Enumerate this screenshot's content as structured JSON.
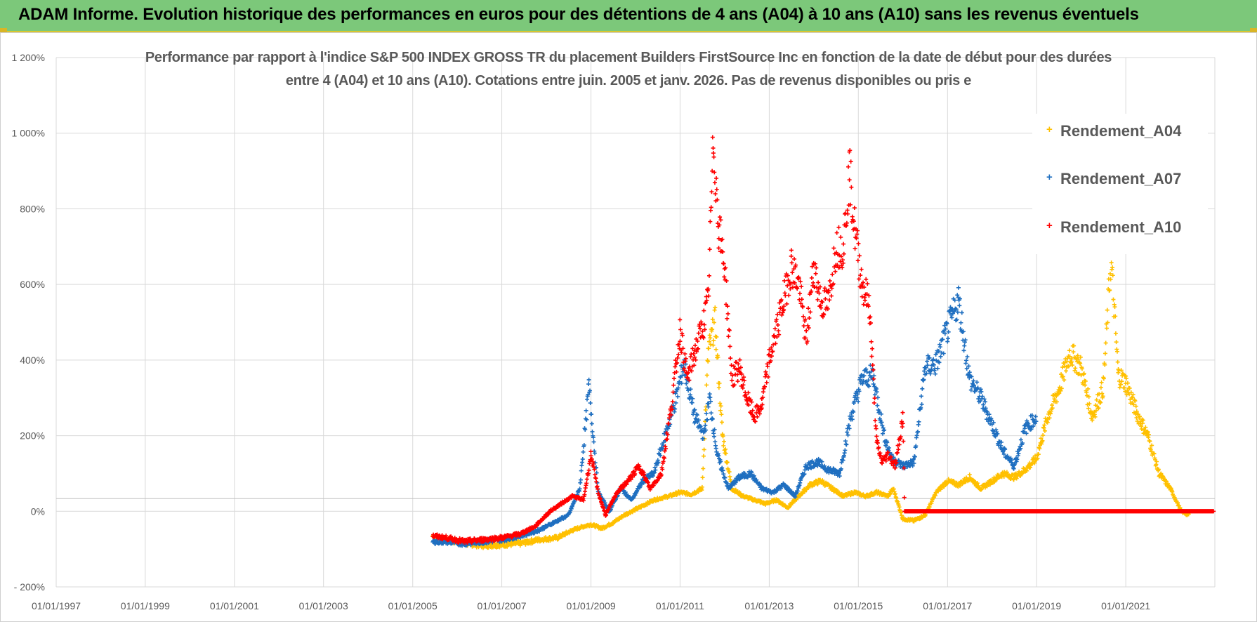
{
  "banner": {
    "title": "ADAM Informe. Evolution historique des performances en euros pour des détentions de 4 ans (A04) à 10 ans (A10) sans les revenus éventuels"
  },
  "colors": {
    "banner_bg": "#7cc87a",
    "A04": "#ffc000",
    "A07": "#1f6fc0",
    "A10": "#ff0000"
  },
  "chart_data": {
    "type": "scatter",
    "title_lines": [
      "Performance par rapport à l'indice S&P 500 INDEX GROSS TR  du placement Builders FirstSource Inc en fonction de la date de début pour des durées",
      "entre 4 (A04) et 10 ans (A10). Cotations entre juin. 2005 et janv. 2026. Pas de revenus disponibles ou pris e"
    ],
    "xlim": [
      "1997-01-01",
      "2023-01-01"
    ],
    "ylim": [
      -200,
      1200
    ],
    "y_ticks": [
      -200,
      0,
      200,
      400,
      600,
      800,
      1000,
      1200
    ],
    "y_tick_labels": [
      "- 200%",
      "0%",
      "200%",
      "400%",
      "600%",
      "800%",
      "1 000%",
      "1 200%"
    ],
    "x_ticks": [
      "1997-01-01",
      "1999-01-01",
      "2001-01-01",
      "2003-01-01",
      "2005-01-01",
      "2007-01-01",
      "2009-01-01",
      "2011-01-01",
      "2013-01-01",
      "2015-01-01",
      "2017-01-01",
      "2019-01-01",
      "2021-01-01"
    ],
    "x_tick_labels": [
      "01/01/1997",
      "01/01/1999",
      "01/01/2001",
      "01/01/2003",
      "01/01/2005",
      "01/01/2007",
      "01/01/2009",
      "01/01/2011",
      "01/01/2013",
      "01/01/2015",
      "01/01/2017",
      "01/01/2019",
      "01/01/2021"
    ],
    "grid": true,
    "marker": "+",
    "legend_position": "top-right",
    "series": [
      {
        "name": "Rendement_A04",
        "color": "#ffc000",
        "x": [
          "2005-06-15",
          "2005-10-01",
          "2006-03-01",
          "2006-08-01",
          "2007-01-01",
          "2007-06-01",
          "2007-11-01",
          "2008-04-01",
          "2008-08-01",
          "2008-11-01",
          "2009-01-01",
          "2009-04-01",
          "2009-07-01",
          "2009-10-01",
          "2010-02-01",
          "2010-06-01",
          "2010-10-01",
          "2011-01-01",
          "2011-04-01",
          "2011-07-01",
          "2011-08-20",
          "2011-10-15",
          "2011-12-15",
          "2012-03-01",
          "2012-06-01",
          "2012-09-01",
          "2012-12-01",
          "2013-03-01",
          "2013-06-01",
          "2013-09-01",
          "2013-12-01",
          "2014-03-01",
          "2014-06-01",
          "2014-09-01",
          "2014-12-01",
          "2015-03-01",
          "2015-06-01",
          "2015-09-01",
          "2015-10-15",
          "2016-01-01",
          "2016-04-01",
          "2016-07-01",
          "2016-10-01",
          "2017-01-01",
          "2017-04-01",
          "2017-07-01",
          "2017-10-01",
          "2018-01-01",
          "2018-04-01",
          "2018-07-01",
          "2018-10-01",
          "2019-01-01",
          "2019-04-01",
          "2019-07-01",
          "2019-10-01",
          "2020-01-01",
          "2020-04-01",
          "2020-07-01",
          "2020-09-01",
          "2020-11-01",
          "2021-01-01",
          "2021-04-01",
          "2021-07-01",
          "2021-10-01",
          "2022-01-01",
          "2022-04-01",
          "2022-06-01"
        ],
        "y": [
          -65,
          -75,
          -85,
          -90,
          -88,
          -85,
          -75,
          -70,
          -50,
          -40,
          -35,
          -45,
          -30,
          -10,
          10,
          30,
          40,
          50,
          45,
          60,
          420,
          500,
          200,
          60,
          40,
          30,
          20,
          30,
          10,
          40,
          70,
          80,
          60,
          40,
          50,
          40,
          50,
          40,
          60,
          -20,
          -25,
          -10,
          50,
          80,
          70,
          90,
          60,
          80,
          100,
          90,
          110,
          140,
          250,
          320,
          420,
          380,
          250,
          330,
          670,
          360,
          340,
          260,
          200,
          100,
          60,
          0,
          -10
        ]
      },
      {
        "name": "Rendement_A07",
        "color": "#1f6fc0",
        "x": [
          "2005-06-15",
          "2005-10-01",
          "2006-03-01",
          "2006-08-01",
          "2007-01-01",
          "2007-06-01",
          "2007-11-01",
          "2008-03-01",
          "2008-07-01",
          "2008-10-01",
          "2008-12-15",
          "2009-03-01",
          "2009-06-01",
          "2009-09-01",
          "2009-12-01",
          "2010-03-01",
          "2010-06-01",
          "2010-09-01",
          "2010-12-01",
          "2011-02-01",
          "2011-05-01",
          "2011-07-15",
          "2011-09-01",
          "2011-11-01",
          "2012-02-01",
          "2012-05-01",
          "2012-08-01",
          "2012-11-01",
          "2013-02-01",
          "2013-05-01",
          "2013-08-01",
          "2013-11-01",
          "2014-02-01",
          "2014-05-01",
          "2014-08-01",
          "2014-11-01",
          "2015-02-01",
          "2015-05-01",
          "2015-08-01",
          "2015-10-01",
          "2016-01-01",
          "2016-04-01",
          "2016-07-01",
          "2016-10-01",
          "2017-01-01",
          "2017-04-01",
          "2017-07-01",
          "2017-10-01",
          "2018-01-01",
          "2018-04-01",
          "2018-07-01",
          "2018-10-01",
          "2019-01-01"
        ],
        "y": [
          -80,
          -80,
          -85,
          -80,
          -75,
          -65,
          -50,
          -30,
          -10,
          60,
          330,
          50,
          0,
          60,
          30,
          80,
          100,
          200,
          300,
          390,
          250,
          200,
          300,
          150,
          60,
          90,
          100,
          60,
          50,
          70,
          40,
          120,
          130,
          110,
          100,
          250,
          350,
          360,
          200,
          140,
          120,
          130,
          380,
          390,
          480,
          560,
          350,
          300,
          230,
          160,
          120,
          220,
          250
        ]
      },
      {
        "name": "Rendement_A10",
        "color": "#ff0000",
        "x": [
          "2005-06-15",
          "2005-10-01",
          "2006-03-01",
          "2006-08-01",
          "2007-01-01",
          "2007-06-01",
          "2007-10-01",
          "2008-02-01",
          "2008-05-01",
          "2008-08-01",
          "2008-11-01",
          "2009-01-01",
          "2009-03-01",
          "2009-05-01",
          "2009-08-01",
          "2009-11-01",
          "2010-02-01",
          "2010-05-01",
          "2010-08-01",
          "2010-11-01",
          "2011-01-01",
          "2011-03-01",
          "2011-05-01",
          "2011-07-15",
          "2011-08-20",
          "2011-10-01",
          "2011-11-15",
          "2012-01-01",
          "2012-03-01",
          "2012-05-01",
          "2012-07-01",
          "2012-09-01",
          "2012-11-01",
          "2013-01-01",
          "2013-03-01",
          "2013-05-01",
          "2013-07-01",
          "2013-09-01",
          "2013-11-01",
          "2014-01-01",
          "2014-03-01",
          "2014-05-01",
          "2014-07-01",
          "2014-09-01",
          "2014-10-20",
          "2014-12-01",
          "2015-02-01",
          "2015-04-01",
          "2015-06-01",
          "2015-07-15",
          "2015-09-01",
          "2015-11-01",
          "2016-01-01",
          "2016-01-15"
        ],
        "y": [
          -65,
          -70,
          -80,
          -75,
          -70,
          -60,
          -40,
          0,
          20,
          40,
          30,
          150,
          50,
          -10,
          50,
          80,
          120,
          60,
          100,
          300,
          480,
          350,
          420,
          500,
          560,
          980,
          750,
          650,
          350,
          380,
          300,
          250,
          280,
          400,
          480,
          560,
          650,
          600,
          450,
          650,
          550,
          550,
          700,
          700,
          900,
          750,
          600,
          550,
          180,
          130,
          150,
          120,
          250,
          0
        ]
      }
    ]
  },
  "legend": {
    "items": [
      {
        "label": "Rendement_A04",
        "color": "#ffc000"
      },
      {
        "label": "Rendement_A07",
        "color": "#1f6fc0"
      },
      {
        "label": "Rendement_A10",
        "color": "#ff0000"
      }
    ]
  }
}
